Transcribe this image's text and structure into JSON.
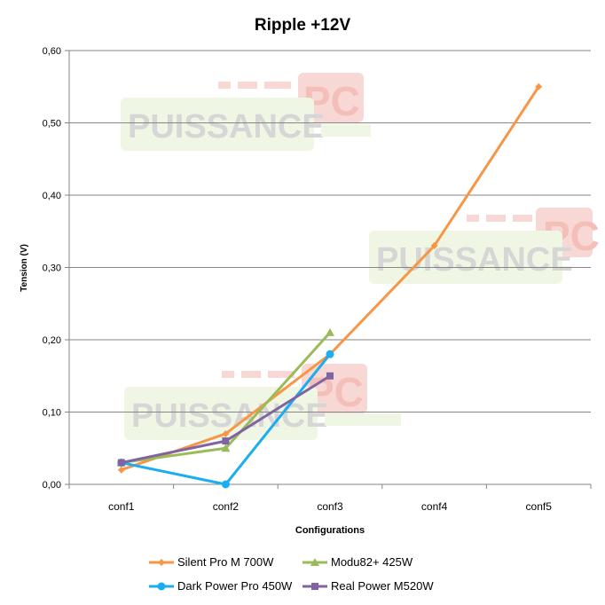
{
  "chart_data": {
    "type": "line",
    "title": "Ripple +12V",
    "xlabel": "Configurations",
    "ylabel": "Tension (V)",
    "categories": [
      "conf1",
      "conf2",
      "conf3",
      "conf4",
      "conf5"
    ],
    "ylim": [
      0,
      0.6
    ],
    "yticks": [
      "0,00",
      "0,10",
      "0,20",
      "0,30",
      "0,40",
      "0,50",
      "0,60"
    ],
    "grid": true,
    "legend_position": "bottom",
    "series": [
      {
        "name": "Silent Pro M 700W",
        "color": "#f79646",
        "marker": "diamond",
        "values": [
          0.02,
          0.07,
          0.18,
          0.33,
          0.55
        ]
      },
      {
        "name": "Modu82+ 425W",
        "color": "#9bbb59",
        "marker": "triangle",
        "values": [
          0.03,
          0.05,
          0.21,
          null,
          null
        ]
      },
      {
        "name": "Dark Power Pro 450W",
        "color": "#1aadef",
        "marker": "circle",
        "values": [
          0.03,
          0.0,
          0.18,
          null,
          null
        ]
      },
      {
        "name": "Real Power M520W",
        "color": "#8064a2",
        "marker": "square",
        "values": [
          0.03,
          0.06,
          0.15,
          null,
          null
        ]
      }
    ]
  },
  "watermark": {
    "text": "PUISSANCE",
    "badge": "PC"
  }
}
